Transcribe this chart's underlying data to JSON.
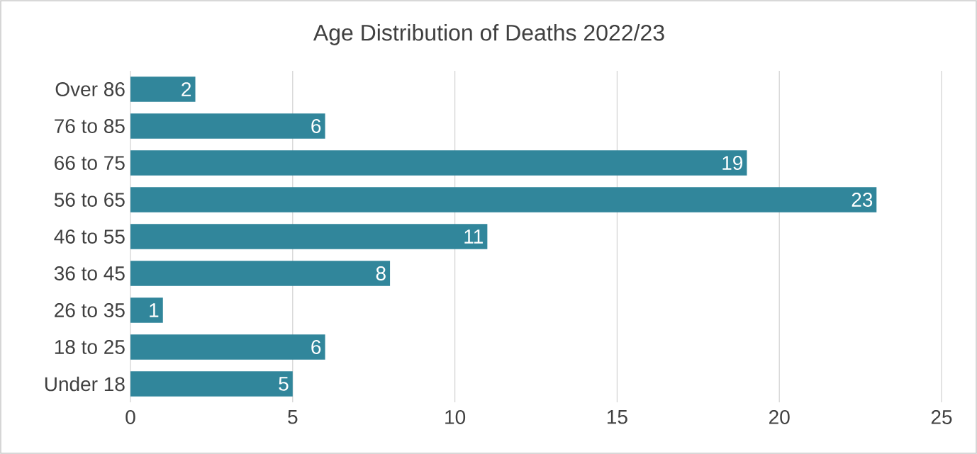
{
  "chart_data": {
    "type": "bar",
    "orientation": "horizontal",
    "title": "Age Distribution of Deaths 2022/23",
    "categories": [
      "Over 86",
      "76 to 85",
      "66 to 75",
      "56 to 65",
      "46 to 55",
      "36 to 45",
      "26 to 35",
      "18 to 25",
      "Under 18"
    ],
    "values": [
      2,
      6,
      19,
      23,
      11,
      8,
      1,
      6,
      5
    ],
    "color": "#31869b",
    "xlim": [
      0,
      25
    ],
    "xticks": [
      0,
      5,
      10,
      15,
      20,
      25
    ],
    "grid": "x",
    "data_labels": true
  }
}
